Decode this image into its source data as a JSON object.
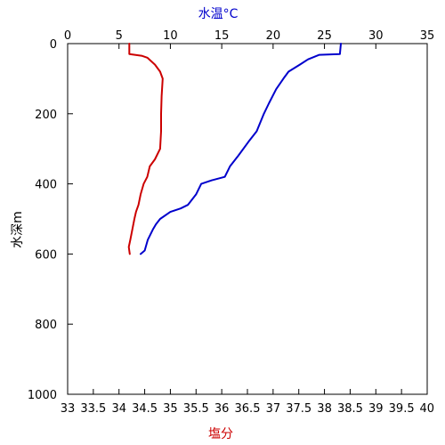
{
  "chart_data": {
    "type": "line",
    "top_axis": {
      "label": "水温°C",
      "label_color": "#0000cc",
      "range": [
        0,
        35
      ],
      "ticks": [
        0,
        5,
        10,
        15,
        20,
        25,
        30,
        35
      ],
      "tick_labels": [
        "0",
        "5",
        "10",
        "15",
        "20",
        "25",
        "30",
        "35"
      ]
    },
    "bottom_axis": {
      "label": "塩分",
      "label_color": "#cc0000",
      "range": [
        33,
        40
      ],
      "ticks": [
        33,
        33.5,
        34,
        34.5,
        35,
        35.5,
        36,
        36.5,
        37,
        37.5,
        38,
        38.5,
        39,
        39.5,
        40
      ],
      "tick_labels": [
        "33",
        "33.5",
        "34",
        "34.5",
        "35",
        "35.5",
        "36",
        "36.5",
        "37",
        "37.5",
        "38",
        "38.5",
        "39",
        "39.5",
        "40"
      ]
    },
    "y_axis": {
      "label": "水深m",
      "range": [
        0,
        1000
      ],
      "inverted": true,
      "ticks": [
        0,
        200,
        400,
        600,
        800,
        1000
      ],
      "tick_labels": [
        "0",
        "200",
        "400",
        "600",
        "800",
        "1000"
      ]
    },
    "grid": false,
    "series": [
      {
        "axis": "top",
        "color": "#0000cc",
        "points": [
          {
            "value": 26.6,
            "depth": 0
          },
          {
            "value": 26.5,
            "depth": 30
          },
          {
            "value": 24.5,
            "depth": 32
          },
          {
            "value": 23.4,
            "depth": 45
          },
          {
            "value": 22.6,
            "depth": 60
          },
          {
            "value": 21.5,
            "depth": 80
          },
          {
            "value": 21.0,
            "depth": 100
          },
          {
            "value": 20.3,
            "depth": 130
          },
          {
            "value": 19.6,
            "depth": 170
          },
          {
            "value": 19.1,
            "depth": 200
          },
          {
            "value": 18.4,
            "depth": 250
          },
          {
            "value": 17.6,
            "depth": 280
          },
          {
            "value": 16.6,
            "depth": 320
          },
          {
            "value": 15.8,
            "depth": 350
          },
          {
            "value": 15.3,
            "depth": 380
          },
          {
            "value": 14.0,
            "depth": 390
          },
          {
            "value": 13.0,
            "depth": 400
          },
          {
            "value": 12.5,
            "depth": 430
          },
          {
            "value": 11.7,
            "depth": 460
          },
          {
            "value": 11.0,
            "depth": 470
          },
          {
            "value": 10.0,
            "depth": 480
          },
          {
            "value": 9.0,
            "depth": 500
          },
          {
            "value": 8.6,
            "depth": 515
          },
          {
            "value": 8.3,
            "depth": 530
          },
          {
            "value": 7.8,
            "depth": 560
          },
          {
            "value": 7.5,
            "depth": 590
          },
          {
            "value": 7.1,
            "depth": 600
          }
        ]
      },
      {
        "axis": "bottom",
        "color": "#cc0000",
        "points": [
          {
            "value": 34.2,
            "depth": 0
          },
          {
            "value": 34.2,
            "depth": 30
          },
          {
            "value": 34.45,
            "depth": 35
          },
          {
            "value": 34.55,
            "depth": 40
          },
          {
            "value": 34.7,
            "depth": 60
          },
          {
            "value": 34.8,
            "depth": 80
          },
          {
            "value": 34.85,
            "depth": 100
          },
          {
            "value": 34.83,
            "depth": 150
          },
          {
            "value": 34.82,
            "depth": 200
          },
          {
            "value": 34.82,
            "depth": 250
          },
          {
            "value": 34.8,
            "depth": 300
          },
          {
            "value": 34.7,
            "depth": 330
          },
          {
            "value": 34.6,
            "depth": 350
          },
          {
            "value": 34.55,
            "depth": 380
          },
          {
            "value": 34.48,
            "depth": 400
          },
          {
            "value": 34.42,
            "depth": 430
          },
          {
            "value": 34.38,
            "depth": 460
          },
          {
            "value": 34.33,
            "depth": 480
          },
          {
            "value": 34.3,
            "depth": 500
          },
          {
            "value": 34.26,
            "depth": 530
          },
          {
            "value": 34.22,
            "depth": 560
          },
          {
            "value": 34.19,
            "depth": 580
          },
          {
            "value": 34.21,
            "depth": 600
          }
        ]
      }
    ]
  }
}
